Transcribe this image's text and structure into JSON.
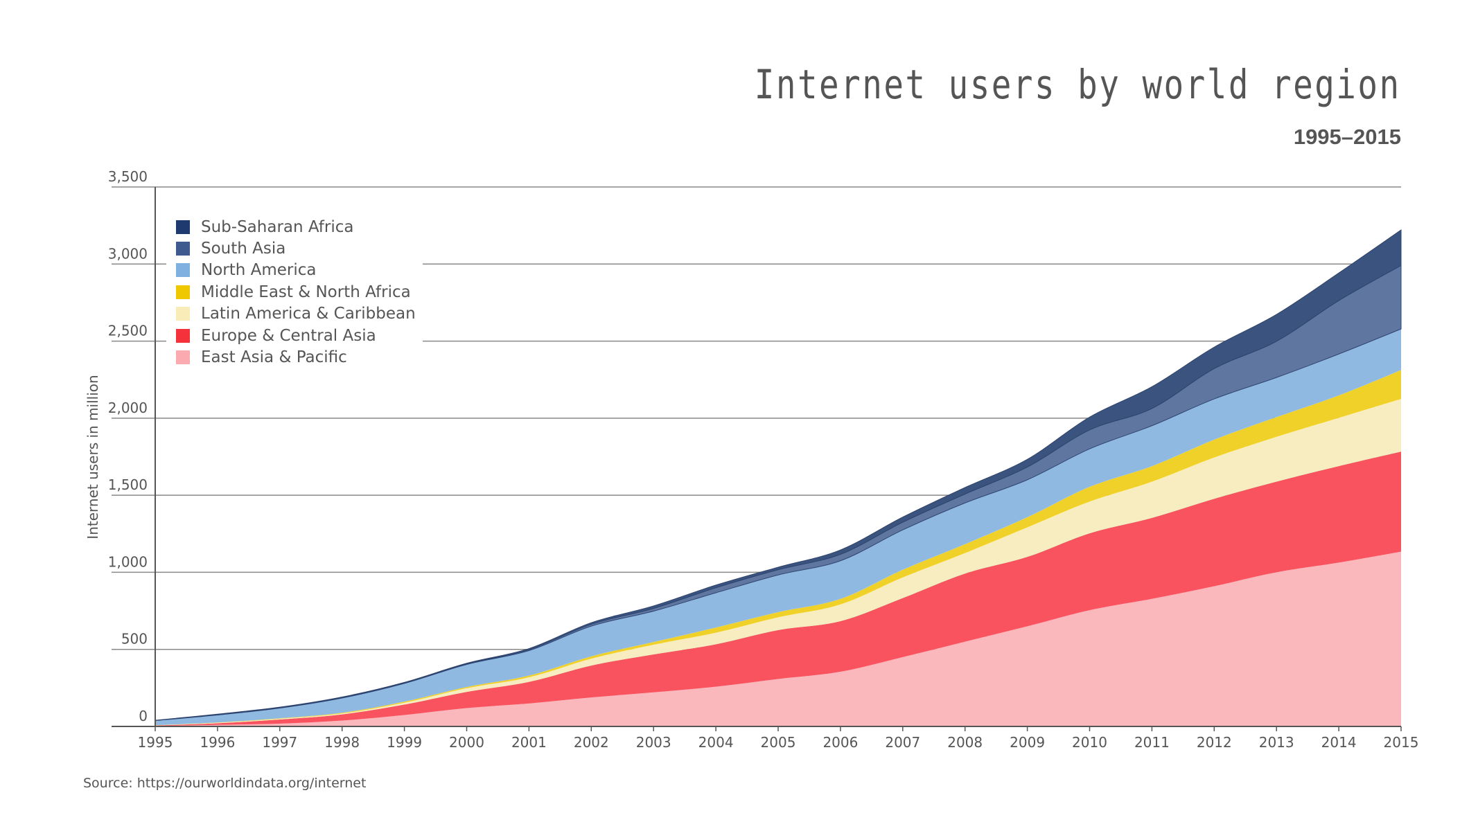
{
  "chart_data": {
    "type": "area",
    "stacked": true,
    "title": "Internet users by world region",
    "subtitle": "1995–2015",
    "ylabel": "Internet users in million",
    "xlabel": "",
    "ylim": [
      0,
      3500
    ],
    "yticks": [
      0,
      500,
      1000,
      1500,
      2000,
      2500,
      3000,
      3500
    ],
    "ytick_labels": [
      "0",
      "500",
      "1,000",
      "1,500",
      "2,000",
      "2,500",
      "3,000",
      "3,500"
    ],
    "grid": true,
    "legend_position": "top-left",
    "x": [
      1995,
      1996,
      1997,
      1998,
      1999,
      2000,
      2001,
      2002,
      2003,
      2004,
      2005,
      2006,
      2007,
      2008,
      2009,
      2010,
      2011,
      2012,
      2013,
      2014,
      2015
    ],
    "series": [
      {
        "name": "East Asia & Pacific",
        "color": "#fab7bc",
        "legend_color": "#fbaab0",
        "values": [
          3,
          10,
          18,
          38,
          74,
          119,
          149,
          188,
          221,
          258,
          308,
          355,
          450,
          550,
          650,
          754,
          828,
          910,
          1000,
          1063,
          1134
        ]
      },
      {
        "name": "Europe & Central Asia",
        "color": "#f9535f",
        "legend_color": "#f5313c",
        "values": [
          3,
          11,
          27,
          40,
          68,
          105,
          140,
          207,
          246,
          275,
          317,
          328,
          383,
          442,
          450,
          499,
          525,
          567,
          588,
          626,
          649
        ]
      },
      {
        "name": "Latin America & Caribbean",
        "color": "#f8edc0",
        "legend_color": "#f9ecb8",
        "values": [
          1,
          3,
          5,
          6,
          12,
          24,
          30,
          45,
          63,
          75,
          83,
          109,
          134,
          133,
          192,
          206,
          235,
          268,
          291,
          313,
          342
        ]
      },
      {
        "name": "Middle East & North Africa",
        "color": "#f0d12a",
        "legend_color": "#f0c800",
        "values": [
          1,
          2,
          3,
          5,
          7,
          8,
          11,
          15,
          18,
          34,
          34,
          36,
          50,
          58,
          66,
          96,
          101,
          116,
          128,
          146,
          188
        ]
      },
      {
        "name": "North America",
        "color": "#8fb9e0",
        "legend_color": "#7fb0e0",
        "values": [
          30,
          48,
          66,
          95,
          118,
          146,
          162,
          196,
          200,
          225,
          241,
          247,
          258,
          267,
          242,
          246,
          262,
          264,
          257,
          268,
          266
        ]
      },
      {
        "name": "South Asia",
        "color": "#5f76a1",
        "legend_color": "#3f5a8f",
        "values": [
          1,
          3,
          3,
          4,
          4,
          4,
          6,
          12,
          18,
          33,
          34,
          42,
          50,
          58,
          83,
          123,
          112,
          197,
          235,
          347,
          412
        ]
      },
      {
        "name": "Sub-Saharan Africa",
        "color": "#3b537f",
        "legend_color": "#1f3a6e",
        "values": [
          1,
          3,
          3,
          3,
          3,
          4,
          7,
          10,
          16,
          17,
          16,
          28,
          33,
          42,
          50,
          83,
          141,
          139,
          174,
          179,
          230
        ]
      }
    ],
    "legend_order": [
      "Sub-Saharan Africa",
      "South Asia",
      "North America",
      "Middle East & North Africa",
      "Latin America & Caribbean",
      "Europe & Central Asia",
      "East Asia & Pacific"
    ]
  },
  "source": "Source: https://ourworldindata.org/internet"
}
